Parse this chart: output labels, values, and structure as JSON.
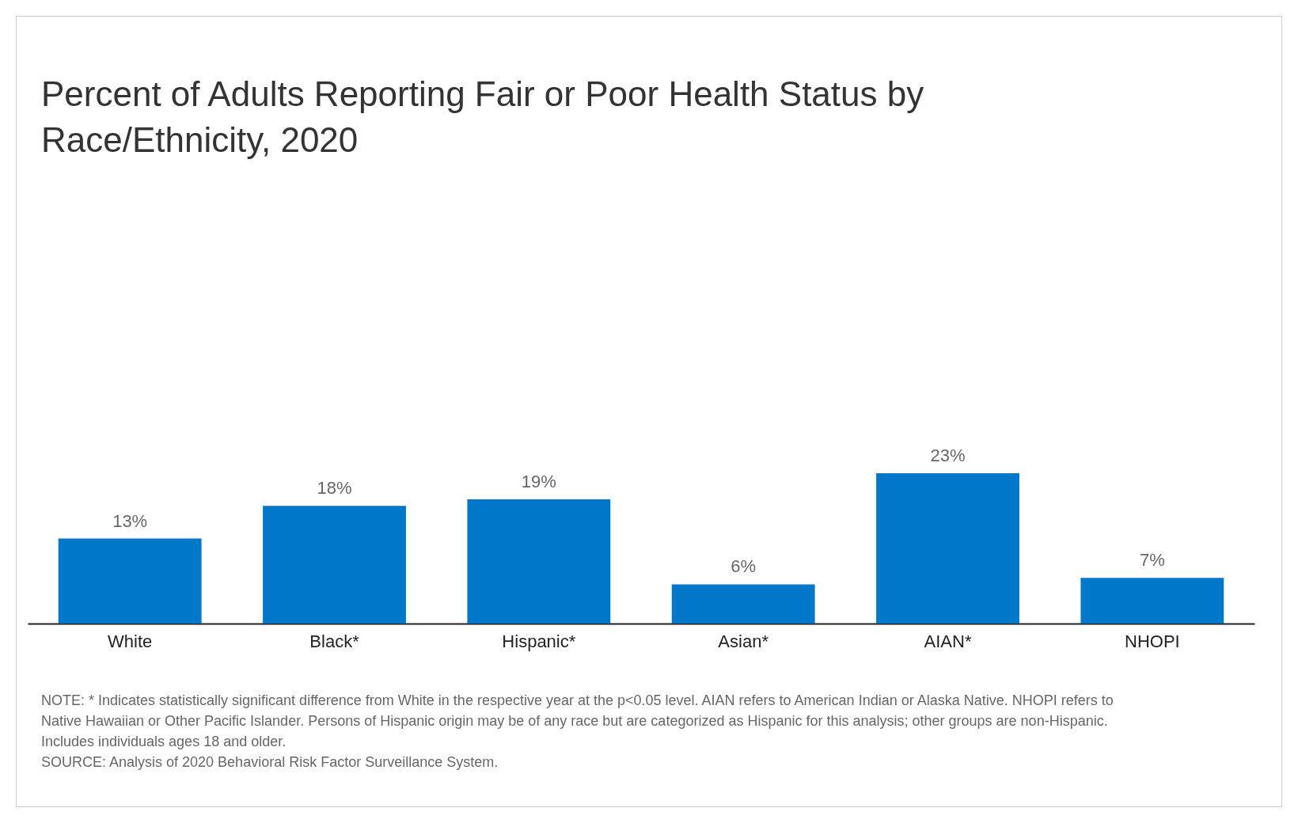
{
  "chart_data": {
    "type": "bar",
    "title": "Percent of Adults Reporting Fair or Poor Health Status by Race/Ethnicity, 2020",
    "categories": [
      "White",
      "Black*",
      "Hispanic*",
      "Asian*",
      "AIAN*",
      "NHOPI"
    ],
    "values": [
      13,
      18,
      19,
      6,
      23,
      7
    ],
    "value_labels": [
      "13%",
      "18%",
      "19%",
      "6%",
      "23%",
      "7%"
    ],
    "color": "#0077c8",
    "annotations": [
      "NOTE: * Indicates statistically significant difference from White in the respective year at the p<0.05 level. AIAN refers to American Indian or Alaska Native. NHOPI refers to Native Hawaiian or Other Pacific Islander. Persons of Hispanic origin may be of any race but are categorized as Hispanic for this analysis; other groups are non-Hispanic. Includes individuals ages 18 and older.",
      "SOURCE: Analysis of 2020 Behavioral Risk Factor Surveillance System."
    ]
  }
}
